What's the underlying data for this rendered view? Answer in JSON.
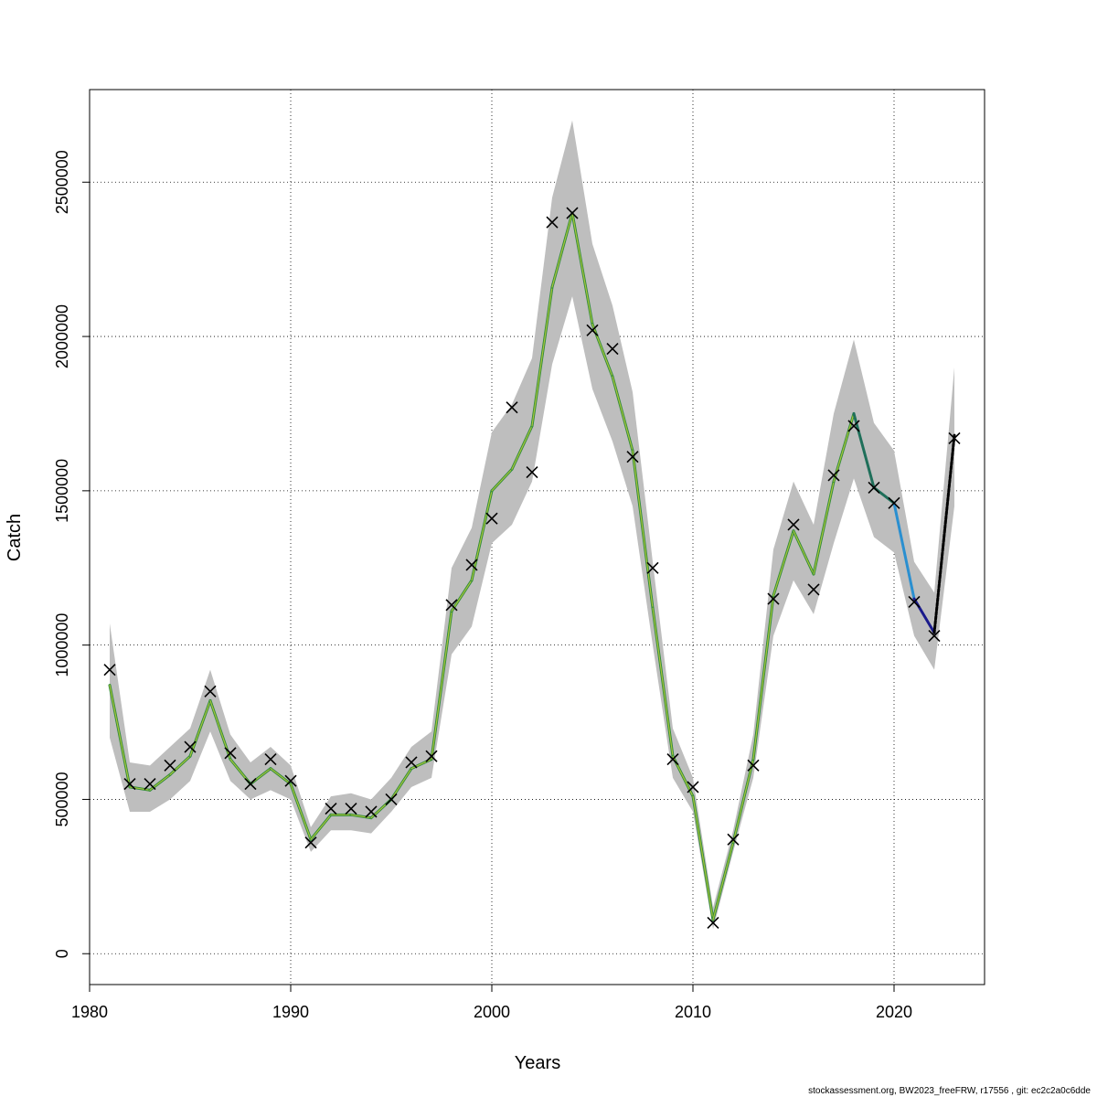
{
  "chart_data": {
    "type": "line",
    "title": "",
    "xlabel": "Years",
    "ylabel": "Catch",
    "xlim": [
      1980,
      2024.5
    ],
    "ylim": [
      -100000,
      2800000
    ],
    "xticks": [
      1980,
      1990,
      2000,
      2010,
      2020
    ],
    "yticks": [
      0,
      500000,
      1000000,
      1500000,
      2000000,
      2500000
    ],
    "grid": true,
    "x": [
      1981,
      1982,
      1983,
      1984,
      1985,
      1986,
      1987,
      1988,
      1989,
      1990,
      1991,
      1992,
      1993,
      1994,
      1995,
      1996,
      1997,
      1998,
      1999,
      2000,
      2001,
      2002,
      2003,
      2004,
      2005,
      2006,
      2007,
      2008,
      2009,
      2010,
      2011,
      2012,
      2013,
      2014,
      2015,
      2016,
      2017,
      2018,
      2019,
      2020,
      2021,
      2022,
      2023
    ],
    "series": [
      {
        "role": "estimate",
        "values": [
          870000,
          540000,
          530000,
          580000,
          640000,
          820000,
          630000,
          550000,
          600000,
          550000,
          370000,
          450000,
          450000,
          440000,
          500000,
          600000,
          630000,
          1110000,
          1210000,
          1500000,
          1570000,
          1710000,
          2160000,
          2400000,
          2040000,
          1870000,
          1630000,
          1120000,
          640000,
          510000,
          110000,
          360000,
          630000,
          1160000,
          1370000,
          1230000,
          1530000,
          1750000,
          1510000,
          1460000,
          1150000,
          1040000,
          1680000
        ]
      },
      {
        "role": "confidence-interval",
        "lower": [
          700000,
          460000,
          460000,
          500000,
          560000,
          720000,
          560000,
          500000,
          530000,
          500000,
          330000,
          400000,
          400000,
          390000,
          460000,
          540000,
          570000,
          970000,
          1060000,
          1330000,
          1390000,
          1530000,
          1910000,
          2130000,
          1830000,
          1660000,
          1450000,
          1000000,
          570000,
          460000,
          80000,
          330000,
          570000,
          1030000,
          1210000,
          1100000,
          1330000,
          1540000,
          1350000,
          1300000,
          1030000,
          920000,
          1450000
        ],
        "upper": [
          1070000,
          620000,
          610000,
          670000,
          730000,
          920000,
          710000,
          620000,
          670000,
          610000,
          410000,
          510000,
          520000,
          500000,
          570000,
          670000,
          720000,
          1250000,
          1380000,
          1690000,
          1780000,
          1930000,
          2450000,
          2700000,
          2300000,
          2100000,
          1820000,
          1270000,
          730000,
          570000,
          150000,
          400000,
          710000,
          1310000,
          1530000,
          1390000,
          1750000,
          1990000,
          1720000,
          1630000,
          1270000,
          1170000,
          1900000
        ]
      },
      {
        "role": "observed",
        "marker": "x",
        "values": [
          920000,
          550000,
          550000,
          610000,
          670000,
          850000,
          650000,
          550000,
          630000,
          560000,
          360000,
          470000,
          470000,
          460000,
          500000,
          620000,
          640000,
          1130000,
          1260000,
          1410000,
          1770000,
          1560000,
          2370000,
          2400000,
          2020000,
          1960000,
          1610000,
          1250000,
          630000,
          540000,
          100000,
          370000,
          610000,
          1150000,
          1390000,
          1180000,
          1550000,
          1710000,
          1510000,
          1460000,
          1140000,
          1030000,
          1670000
        ]
      }
    ],
    "colors": {
      "ci_fill": "#bebebe",
      "line_main": "#2e8b3a",
      "line_highlight": "#a8c43a",
      "line_2018": "#1f6f5a",
      "line_2020": "#2a8fd0",
      "line_2021": "#1a1a8c",
      "line_2022": "#000000",
      "grid": "#000000",
      "marker": "#000000"
    }
  },
  "footer": {
    "note": "stockassessment.org, BW2023_freeFRW, r17556 , git: ec2c2a0c6dde"
  }
}
